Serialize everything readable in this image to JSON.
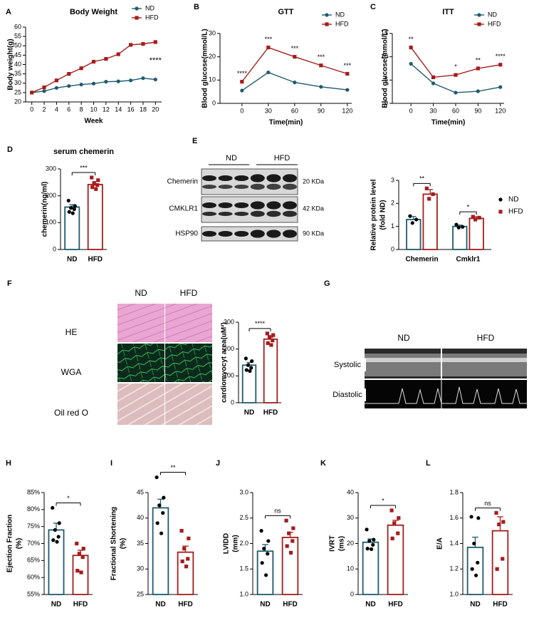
{
  "chart_data": [
    {
      "type": "line",
      "panel": "A",
      "title": "Body Weight",
      "xlabel": "Week",
      "ylabel": [
        "Body weight(g)"
      ],
      "x": [
        0,
        2,
        4,
        6,
        8,
        10,
        12,
        14,
        16,
        18,
        20
      ],
      "xlim": [
        -1,
        21
      ],
      "xticks": [
        0,
        2,
        4,
        6,
        8,
        10,
        12,
        14,
        16,
        18,
        20
      ],
      "ylim": [
        20,
        60
      ],
      "yticks": [
        20,
        25,
        30,
        35,
        40,
        45,
        50,
        55,
        60
      ],
      "series": [
        {
          "name": "ND",
          "color": "#1e5b6e",
          "values": [
            25,
            25.8,
            27.5,
            28.5,
            29.3,
            29.8,
            30.8,
            31,
            31.5,
            32.7,
            32
          ]
        },
        {
          "name": "HFD",
          "color": "#a61c1c",
          "values": [
            25,
            27.8,
            31.5,
            35,
            38,
            41.5,
            43,
            45.5,
            50.5,
            51,
            52
          ]
        }
      ],
      "annotations": [
        {
          "x": 20,
          "label": "****"
        }
      ]
    },
    {
      "type": "line",
      "panel": "B",
      "title": "GTT",
      "xlabel": "Time(min)",
      "ylabel": [
        "Blood glucose(mmol/L)"
      ],
      "x": [
        0,
        30,
        60,
        90,
        120
      ],
      "xlim": [
        -25,
        125
      ],
      "xticks": [
        0,
        30,
        60,
        90,
        120
      ],
      "ylim": [
        0,
        30
      ],
      "yticks": [
        0,
        10,
        20,
        30
      ],
      "series": [
        {
          "name": "ND",
          "color": "#1e5b6e",
          "values": [
            5.5,
            13.3,
            9,
            7.1,
            5.8
          ]
        },
        {
          "name": "HFD",
          "color": "#a61c1c",
          "values": [
            9.3,
            24,
            20,
            16.3,
            12.7
          ]
        }
      ],
      "annotations": [
        {
          "x": 0,
          "label": "****"
        },
        {
          "x": 30,
          "label": "***"
        },
        {
          "x": 60,
          "label": "***"
        },
        {
          "x": 90,
          "label": "***"
        },
        {
          "x": 120,
          "label": "***"
        }
      ]
    },
    {
      "type": "line",
      "panel": "C",
      "title": "ITT",
      "xlabel": "Time(min)",
      "ylabel": [
        "Blood glucose(mmol/L)"
      ],
      "x": [
        0,
        30,
        60,
        90,
        120
      ],
      "xlim": [
        -25,
        125
      ],
      "xticks": [
        0,
        30,
        60,
        90,
        120
      ],
      "ylim": [
        0,
        15
      ],
      "yticks": [
        0,
        5,
        10,
        15
      ],
      "series": [
        {
          "name": "ND",
          "color": "#1e5b6e",
          "values": [
            8.5,
            4.3,
            2.3,
            2.6,
            3.5
          ]
        },
        {
          "name": "HFD",
          "color": "#a61c1c",
          "values": [
            12,
            5.6,
            6.1,
            7.5,
            8.3
          ]
        }
      ],
      "annotations": [
        {
          "x": 0,
          "label": "**"
        },
        {
          "x": 60,
          "label": "*"
        },
        {
          "x": 90,
          "label": "**"
        },
        {
          "x": 120,
          "label": "****"
        }
      ]
    },
    {
      "type": "bar",
      "panel": "D",
      "title": "serum chemerin",
      "ylabel": [
        "chemerin(ng/ml)"
      ],
      "categories": [
        "ND",
        "HFD"
      ],
      "values": [
        158,
        242
      ],
      "errors": [
        9,
        11
      ],
      "points": [
        [
          182,
          162,
          155,
          150,
          140,
          135
        ],
        [
          268,
          258,
          245,
          240,
          232,
          225
        ]
      ],
      "colors": [
        "#1e5b6e",
        "#a61c1c"
      ],
      "point_colors": [
        "#000000",
        "#a61c1c"
      ],
      "ylim": [
        0,
        300
      ],
      "yticks": [
        0,
        100,
        200,
        300
      ],
      "significance": "***"
    },
    {
      "type": "bar",
      "ylabel": [
        "Relative protein level",
        "(fold ND)"
      ],
      "categories": [
        "Chemerin",
        "Cmklr1"
      ],
      "series": [
        {
          "name": "ND",
          "color": "#1e5b6e",
          "point_color": "#000000",
          "values": [
            1.3,
            1.0
          ],
          "errors": [
            0.13,
            0.06
          ],
          "points": [
            [
              1.45,
              1.3,
              1.15
            ],
            [
              1.08,
              0.98,
              0.95
            ]
          ]
        },
        {
          "name": "HFD",
          "color": "#a61c1c",
          "point_color": "#a61c1c",
          "values": [
            2.4,
            1.35
          ],
          "errors": [
            0.2,
            0.07
          ],
          "points": [
            [
              2.65,
              2.4,
              2.2
            ],
            [
              1.42,
              1.38,
              1.3
            ]
          ]
        }
      ],
      "ylim": [
        0,
        3
      ],
      "yticks": [
        0,
        1,
        2,
        3
      ],
      "significance": [
        "**",
        "*"
      ]
    },
    {
      "type": "bar",
      "ylabel": [
        "cardiomyocyt area(uM²)"
      ],
      "categories": [
        "ND",
        "HFD"
      ],
      "values": [
        140,
        237
      ],
      "errors": [
        10,
        7
      ],
      "points": [
        [
          165,
          155,
          140,
          130,
          122,
          118
        ],
        [
          258,
          252,
          245,
          232,
          222,
          215
        ]
      ],
      "colors": [
        "#1e5b6e",
        "#a61c1c"
      ],
      "point_colors": [
        "#000000",
        "#a61c1c"
      ],
      "ylim": [
        0,
        300
      ],
      "yticks": [
        0,
        100,
        200,
        300
      ],
      "significance": "****"
    },
    {
      "type": "bar",
      "panel": "H",
      "ylabel": [
        "Ejection Fraction",
        "(%)"
      ],
      "categories": [
        "ND",
        "HFD"
      ],
      "values": [
        74,
        66.5
      ],
      "errors": [
        2,
        1.5
      ],
      "points": [
        [
          80.5,
          76,
          74,
          72,
          71,
          70.5
        ],
        [
          70,
          68.5,
          67,
          66,
          62,
          61.5
        ]
      ],
      "colors": [
        "#1e5b6e",
        "#a61c1c"
      ],
      "point_colors": [
        "#000000",
        "#a61c1c"
      ],
      "ylim": [
        55,
        85
      ],
      "yticks": [
        {
          "value": 55,
          "label": "55%"
        },
        {
          "value": 60,
          "label": "60%"
        },
        {
          "value": 65,
          "label": "65%"
        },
        {
          "value": 70,
          "label": "70%"
        },
        {
          "value": 75,
          "label": "75%"
        },
        {
          "value": 80,
          "label": "80%"
        },
        {
          "value": 85,
          "label": "85%"
        }
      ],
      "significance": "*"
    },
    {
      "type": "bar",
      "panel": "I",
      "ylabel": [
        "Fractional Shortening",
        "(%)"
      ],
      "categories": [
        "ND",
        "HFD"
      ],
      "values": [
        42,
        33.3
      ],
      "errors": [
        1.7,
        1.2
      ],
      "points": [
        [
          48,
          44,
          42.5,
          41,
          39,
          37
        ],
        [
          37.5,
          36,
          34,
          32,
          31.5,
          30.5
        ]
      ],
      "colors": [
        "#1e5b6e",
        "#a61c1c"
      ],
      "point_colors": [
        "#000000",
        "#a61c1c"
      ],
      "ylim": [
        25,
        45
      ],
      "yticks": [
        25,
        30,
        35,
        40,
        45
      ],
      "significance": "**"
    },
    {
      "type": "bar",
      "panel": "J",
      "ylabel": [
        "LVIDD",
        "(mm)"
      ],
      "categories": [
        "ND",
        "HFD"
      ],
      "values": [
        1.85,
        2.12
      ],
      "errors": [
        0.13,
        0.1
      ],
      "points": [
        [
          2.25,
          2.05,
          1.9,
          1.8,
          1.62,
          1.38
        ],
        [
          2.45,
          2.3,
          2.2,
          2.05,
          1.95,
          1.82
        ]
      ],
      "colors": [
        "#1e5b6e",
        "#a61c1c"
      ],
      "point_colors": [
        "#000000",
        "#a61c1c"
      ],
      "ylim": [
        1,
        3
      ],
      "yticks": [
        {
          "value": 1,
          "label": "1.0"
        },
        1.5,
        {
          "value": 2,
          "label": "2.0"
        },
        2.5,
        {
          "value": 3,
          "label": "3.0"
        }
      ],
      "significance": "ns"
    },
    {
      "type": "bar",
      "panel": "K",
      "ylabel": [
        "IVRT",
        "(ms)"
      ],
      "categories": [
        "ND",
        "HFD"
      ],
      "values": [
        20.5,
        27.2
      ],
      "errors": [
        1.3,
        1.9
      ],
      "points": [
        [
          25.5,
          21.5,
          21,
          19.5,
          18,
          17.8
        ],
        [
          33,
          30,
          28,
          24,
          22
        ]
      ],
      "colors": [
        "#1e5b6e",
        "#a61c1c"
      ],
      "point_colors": [
        "#000000",
        "#a61c1c"
      ],
      "ylim": [
        0,
        40
      ],
      "yticks": [
        0,
        10,
        20,
        30,
        40
      ],
      "significance": "*"
    },
    {
      "type": "bar",
      "panel": "L",
      "ylabel": [
        "E/A"
      ],
      "categories": [
        "ND",
        "HFD"
      ],
      "values": [
        1.37,
        1.5
      ],
      "errors": [
        0.08,
        0.11
      ],
      "points": [
        [
          1.61,
          1.6,
          1.4,
          1.25,
          1.2,
          1.15
        ],
        [
          1.64,
          1.57,
          1.55,
          1.28,
          1.2
        ]
      ],
      "colors": [
        "#1e5b6e",
        "#a61c1c"
      ],
      "point_colors": [
        "#000000",
        "#a61c1c"
      ],
      "ylim": [
        1,
        1.8
      ],
      "yticks": [
        {
          "value": 1,
          "label": "1.0"
        },
        1.2,
        1.4,
        1.6,
        1.8
      ],
      "significance": "ns"
    }
  ],
  "blot": {
    "panel": "E",
    "groups": [
      "ND",
      "HFD"
    ],
    "proteins": [
      "Chemerin",
      "CMKLR1",
      "HSP90"
    ],
    "sizes": [
      "20 KDa",
      "42 KDa",
      "90 KDa"
    ]
  },
  "histology": {
    "panel": "F",
    "groups": [
      "ND",
      "HFD"
    ],
    "stains": [
      "HE",
      "WGA",
      "Oil red O"
    ]
  },
  "echo": {
    "panel": "G",
    "groups": [
      "ND",
      "HFD"
    ],
    "modes": [
      "Systolic",
      "Diastolic"
    ]
  }
}
